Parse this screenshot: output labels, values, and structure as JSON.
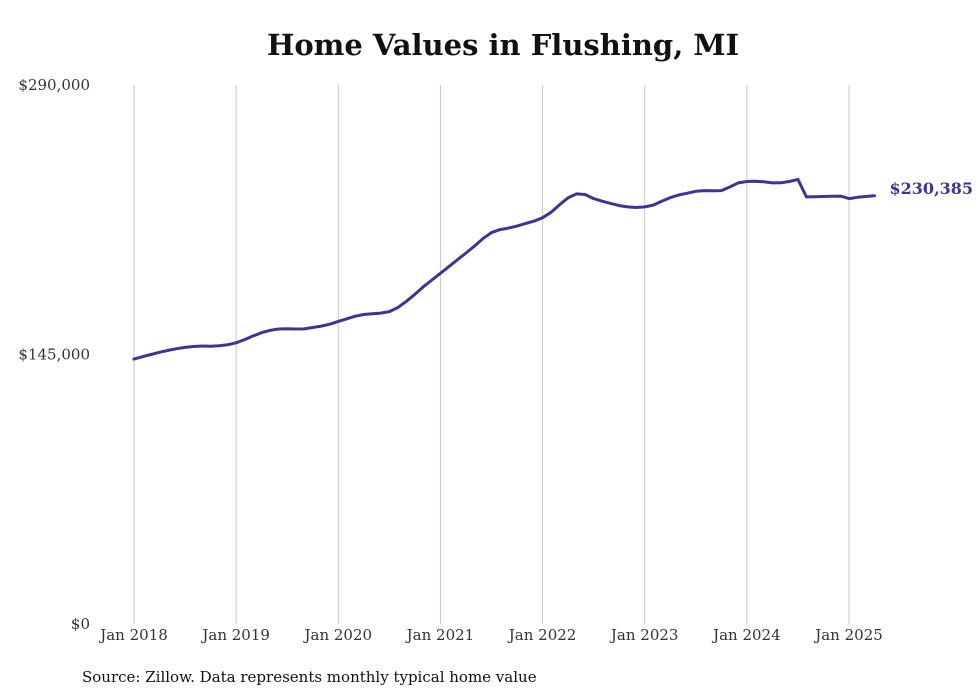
{
  "chart_data": {
    "type": "line",
    "title": "Home Values in Flushing, MI",
    "source": "Source: Zillow. Data represents monthly typical home value",
    "ylim": [
      0,
      290000
    ],
    "yticks": [
      "$0",
      "$145,000",
      "$290,000"
    ],
    "ytick_values": [
      0,
      145000,
      290000
    ],
    "xticks": [
      "Jan 2018",
      "Jan 2019",
      "Jan 2020",
      "Jan 2021",
      "Jan 2022",
      "Jan 2023",
      "Jan 2024",
      "Jan 2025"
    ],
    "xtick_values": [
      "2018-01",
      "2019-01",
      "2020-01",
      "2021-01",
      "2022-01",
      "2023-01",
      "2024-01",
      "2025-01"
    ],
    "grid": "vertical",
    "last_label": "$230,385",
    "color": "#3b3595",
    "series": [
      {
        "x": [
          "2018-01",
          "2018-02",
          "2018-03",
          "2018-04",
          "2018-05",
          "2018-06",
          "2018-07",
          "2018-08",
          "2018-09",
          "2018-10",
          "2018-11",
          "2018-12",
          "2019-01",
          "2019-02",
          "2019-03",
          "2019-04",
          "2019-05",
          "2019-06",
          "2019-07",
          "2019-08",
          "2019-09",
          "2019-10",
          "2019-11",
          "2019-12",
          "2020-01",
          "2020-02",
          "2020-03",
          "2020-04",
          "2020-05",
          "2020-06",
          "2020-07",
          "2020-08",
          "2020-09",
          "2020-10",
          "2020-11",
          "2020-12",
          "2021-01",
          "2021-02",
          "2021-03",
          "2021-04",
          "2021-05",
          "2021-06",
          "2021-07",
          "2021-08",
          "2021-09",
          "2021-10",
          "2021-11",
          "2021-12",
          "2022-01",
          "2022-02",
          "2022-03",
          "2022-04",
          "2022-05",
          "2022-06",
          "2022-07",
          "2022-08",
          "2022-09",
          "2022-10",
          "2022-11",
          "2022-12",
          "2023-01",
          "2023-02",
          "2023-03",
          "2023-04",
          "2023-05",
          "2023-06",
          "2023-07",
          "2023-08",
          "2023-09",
          "2023-10",
          "2023-11",
          "2023-12",
          "2024-01",
          "2024-02",
          "2024-03",
          "2024-04",
          "2024-05",
          "2024-06",
          "2024-07",
          "2024-08",
          "2024-09",
          "2024-10",
          "2024-11",
          "2024-12",
          "2025-01",
          "2025-02",
          "2025-03",
          "2025-04"
        ],
        "values": [
          142500,
          143800,
          145000,
          146200,
          147200,
          148100,
          148800,
          149300,
          149600,
          149400,
          149700,
          150200,
          151300,
          153000,
          155000,
          156800,
          158000,
          158700,
          158900,
          158700,
          158800,
          159500,
          160300,
          161300,
          162800,
          164200,
          165600,
          166500,
          166900,
          167300,
          168100,
          170300,
          173600,
          177400,
          181500,
          185100,
          188700,
          192300,
          196000,
          199600,
          203300,
          207400,
          210600,
          212200,
          213000,
          214100,
          215500,
          216800,
          218600,
          221500,
          225600,
          229300,
          231400,
          231100,
          228900,
          227500,
          226300,
          225100,
          224400,
          224100,
          224400,
          225400,
          227500,
          229400,
          230800,
          231800,
          232800,
          233200,
          233100,
          233200,
          235100,
          237300,
          238100,
          238200,
          237900,
          237300,
          237400,
          238100,
          239200,
          229800,
          229900,
          230000,
          230100,
          230200,
          228900,
          229600,
          230000,
          230385
        ]
      }
    ]
  }
}
